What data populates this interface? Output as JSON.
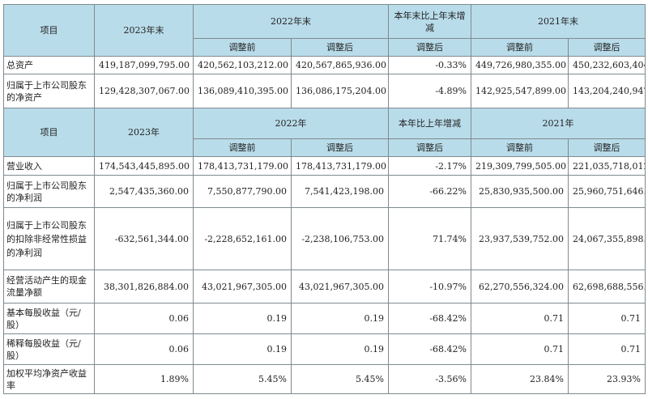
{
  "table1": {
    "headers": {
      "item": "项目",
      "y2023": "2023年末",
      "y2022": "2022年末",
      "change": "本年末比上年末增减",
      "y2021": "2021年末",
      "before": "调整前",
      "after": "调整后",
      "after_change": "调整后"
    },
    "rows": [
      {
        "label": "总资产",
        "v2023": "419,187,099,795.00",
        "v2022_before": "420,562,103,212.00",
        "v2022_after": "420,567,865,936.00",
        "change": "-0.33%",
        "v2021_before": "449,726,980,355.00",
        "v2021_after": "450,232,603,404.00"
      },
      {
        "label": "归属于上市公司股东的净资产",
        "v2023": "129,428,307,067.00",
        "v2022_before": "136,089,410,395.00",
        "v2022_after": "136,086,175,204.00",
        "change": "-4.89%",
        "v2021_before": "142,925,547,899.00",
        "v2021_after": "143,204,240,947.00"
      }
    ]
  },
  "table2": {
    "headers": {
      "item": "项目",
      "y2023": "2023年",
      "y2022": "2022年",
      "change": "本年比上年增减",
      "y2021": "2021年",
      "before": "调整前",
      "after": "调整后",
      "after_change": "调整后"
    },
    "rows": [
      {
        "label": "营业收入",
        "v2023": "174,543,445,895.00",
        "v2022_before": "178,413,731,179.00",
        "v2022_after": "178,413,731,179.00",
        "change": "-2.17%",
        "v2021_before": "219,309,799,505.00",
        "v2021_after": "221,035,718,012.00"
      },
      {
        "label": "归属于上市公司股东的净利润",
        "v2023": "2,547,435,360.00",
        "v2022_before": "7,550,877,790.00",
        "v2022_after": "7,541,423,198.00",
        "change": "-66.22%",
        "v2021_before": "25,830,935,500.00",
        "v2021_after": "25,960,751,646.00"
      },
      {
        "label": "归属于上市公司股东的扣除非经常性损益的净利润",
        "v2023": "-632,561,344.00",
        "v2022_before": "-2,228,652,161.00",
        "v2022_after": "-2,238,106,753.00",
        "change": "71.74%",
        "v2021_before": "23,937,539,752.00",
        "v2021_after": "24,067,355,898.00"
      },
      {
        "label": "经营活动产生的现金流量净额",
        "v2023": "38,301,826,884.00",
        "v2022_before": "43,021,967,305.00",
        "v2022_after": "43,021,967,305.00",
        "change": "-10.97%",
        "v2021_before": "62,270,556,324.00",
        "v2021_after": "62,698,688,556.00"
      },
      {
        "label": "基本每股收益（元/股）",
        "v2023": "0.06",
        "v2022_before": "0.19",
        "v2022_after": "0.19",
        "change": "-68.42%",
        "v2021_before": "0.71",
        "v2021_after": "0.71"
      },
      {
        "label": "稀释每股收益（元/股）",
        "v2023": "0.06",
        "v2022_before": "0.19",
        "v2022_after": "0.19",
        "change": "-68.42%",
        "v2021_before": "0.71",
        "v2021_after": "0.71"
      },
      {
        "label": "加权平均净资产收益率",
        "v2023": "1.89%",
        "v2022_before": "5.45%",
        "v2022_after": "5.45%",
        "change": "-3.56%",
        "v2021_before": "23.84%",
        "v2021_after": "23.93%"
      }
    ]
  }
}
